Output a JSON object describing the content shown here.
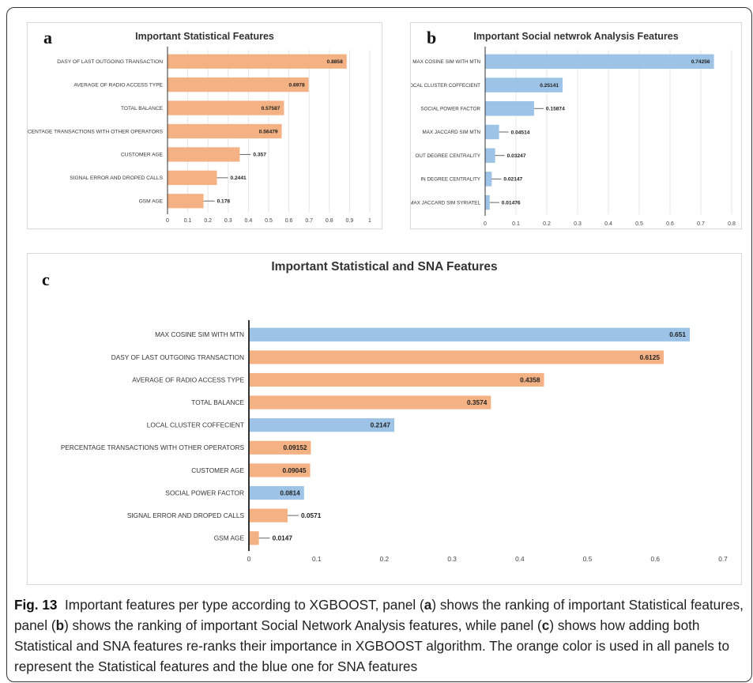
{
  "chart_data": [
    {
      "type": "bar",
      "orientation": "horizontal",
      "panel": "a",
      "title": "Important Statistical Features",
      "categories": [
        "DASY OF LAST OUTGOING TRANSACTION",
        "AVERAGE OF RADIO ACCESS TYPE",
        "TOTAL BALANCE",
        "PERCENTAGE TRANSACTIONS WITH OTHER OPERATORS",
        "CUSTOMER AGE",
        "SIGNAL ERROR AND DROPED CALLS",
        "GSM AGE"
      ],
      "values": [
        0.8858,
        0.6978,
        0.57587,
        0.56479,
        0.357,
        0.2441,
        0.178
      ],
      "value_labels": [
        "0.8858",
        "0.6978",
        "0.57587",
        "0.56479",
        "0.357",
        "0.2441",
        "0.178"
      ],
      "groups": [
        "stat",
        "stat",
        "stat",
        "stat",
        "stat",
        "stat",
        "stat"
      ],
      "xlim": [
        0,
        1
      ],
      "xticks": [
        "0",
        "0.1",
        "0.2",
        "0.3",
        "0.4",
        "0.5",
        "0.6",
        "0.7",
        "0.8",
        "0.9",
        "1"
      ],
      "grid": true
    },
    {
      "type": "bar",
      "orientation": "horizontal",
      "panel": "b",
      "title": "Important Social netwrok Analysis Features",
      "categories": [
        "MAX COSINE SIM WITH MTN",
        "LOCAL CLUSTER COFFECIENT",
        "SOCIAL POWER FACTOR",
        "MAX JACCARD SIM MTN",
        "OUT DEGREE CENTRALITY",
        "IN DEGREE CENTRALITY",
        "MAX JACCARD SIM SYRIATEL"
      ],
      "values": [
        0.74256,
        0.25141,
        0.15874,
        0.04514,
        0.03247,
        0.02147,
        0.01476
      ],
      "value_labels": [
        "0.74256",
        "0.25141",
        "0.15874",
        "0.04514",
        "0.03247",
        "0.02147",
        "0.01476"
      ],
      "groups": [
        "sna",
        "sna",
        "sna",
        "sna",
        "sna",
        "sna",
        "sna"
      ],
      "xlim": [
        0,
        0.8
      ],
      "xticks": [
        "0",
        "0.1",
        "0.2",
        "0.3",
        "0.4",
        "0.5",
        "0.6",
        "0.7",
        "0.8"
      ],
      "grid": true
    },
    {
      "type": "bar",
      "orientation": "horizontal",
      "panel": "c",
      "title": "Important Statistical and SNA Features",
      "categories": [
        "MAX COSINE SIM WITH MTN",
        "DASY OF LAST OUTGOING TRANSACTION",
        "AVERAGE OF RADIO ACCESS TYPE",
        "TOTAL BALANCE",
        "LOCAL CLUSTER COFFECIENT",
        "PERCENTAGE TRANSACTIONS WITH OTHER OPERATORS",
        "CUSTOMER AGE",
        "SOCIAL POWER FACTOR",
        "SIGNAL ERROR AND DROPED CALLS",
        "GSM AGE"
      ],
      "values": [
        0.651,
        0.6125,
        0.4358,
        0.3574,
        0.2147,
        0.09152,
        0.09045,
        0.0814,
        0.0571,
        0.0147
      ],
      "value_labels": [
        "0.651",
        "0.6125",
        "0.4358",
        "0.3574",
        "0.2147",
        "0.09152",
        "0.09045",
        "0.0814",
        "0.0571",
        "0.0147"
      ],
      "groups": [
        "sna",
        "stat",
        "stat",
        "stat",
        "sna",
        "stat",
        "stat",
        "sna",
        "stat",
        "stat"
      ],
      "xlim": [
        0,
        0.7
      ],
      "xticks": [
        "0",
        "0.1",
        "0.2",
        "0.3",
        "0.4",
        "0.5",
        "0.6",
        "0.7"
      ],
      "grid": false
    }
  ],
  "colors": {
    "stat": "#f4b183",
    "sna": "#9dc3e6",
    "grid": "#e6e6e6",
    "axis": "#333333"
  },
  "panels": {
    "a_letter": "a",
    "b_letter": "b",
    "c_letter": "c"
  },
  "caption": {
    "figure_label": "Fig. 13",
    "parts": [
      "Important features per type according to XGBOOST, panel (",
      "a",
      ") shows the ranking of important Statistical features, panel (",
      "b",
      ") shows the ranking of important Social Network Analysis features, while panel (",
      "c",
      ") shows how adding both Statistical and SNA features re-ranks their importance in XGBOOST algorithm. The orange color is used in all panels to represent the Statistical features and the blue one for SNA features"
    ]
  }
}
